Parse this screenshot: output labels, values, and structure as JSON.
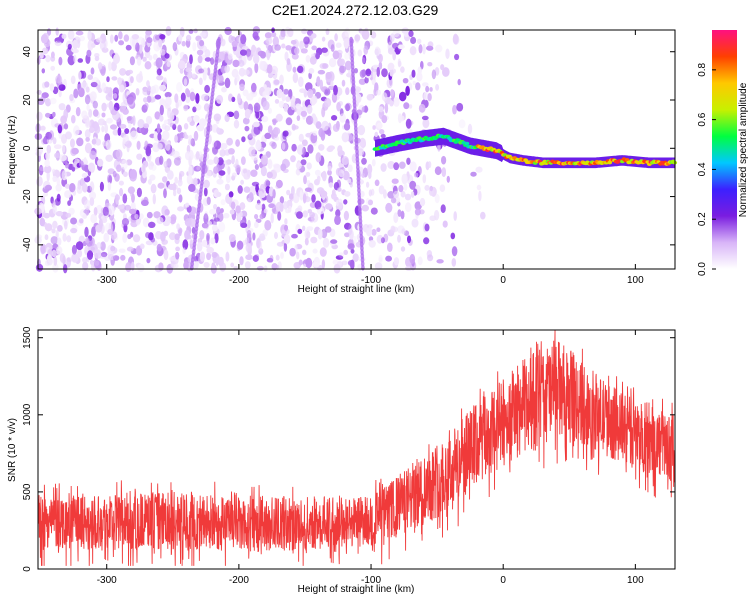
{
  "title": "C2E1.2024.272.12.03.G29",
  "chart_data": [
    {
      "type": "heatmap",
      "title": "",
      "xlabel": "Height of straight line (km)",
      "ylabel": "Frequency (Hz)",
      "xlim": [
        -352,
        130
      ],
      "ylim": [
        -50,
        49
      ],
      "x_ticks": [
        -300,
        -200,
        -100,
        0,
        100
      ],
      "y_ticks": [
        -40,
        -20,
        0,
        20,
        40
      ],
      "colorbar": {
        "label": "Normalized spectral amplitude",
        "range": [
          0,
          0.96
        ],
        "ticks": [
          0.0,
          0.2,
          0.4,
          0.6,
          0.8
        ],
        "colormap": [
          "#ffffff",
          "#d8b4f8",
          "#7a1de0",
          "#3c20ff",
          "#00c8ff",
          "#00ff40",
          "#c8f000",
          "#ffc800",
          "#ff4000",
          "#ff1080"
        ]
      },
      "noise_region": {
        "x_range": [
          -352,
          -40
        ],
        "description_color": "#6010e0"
      },
      "signal_track": {
        "x": [
          -97,
          -80,
          -60,
          -45,
          -35,
          -25,
          -15,
          -5,
          5,
          15,
          30,
          50,
          70,
          90,
          110,
          130
        ],
        "frequency": [
          0,
          2,
          4,
          5,
          3,
          1,
          0,
          -1,
          -4,
          -5,
          -6,
          -6,
          -6,
          -5,
          -6,
          -6
        ]
      }
    },
    {
      "type": "line",
      "title": "",
      "xlabel": "Height of straight line (km)",
      "ylabel": "SNR (10 * v/v)",
      "xlim": [
        -352,
        130
      ],
      "ylim": [
        0,
        1550
      ],
      "x_ticks": [
        -300,
        -200,
        -100,
        0,
        100
      ],
      "y_ticks": [
        0,
        500,
        1000,
        1500
      ],
      "series": [
        {
          "color": "#f03a3a",
          "envelope_x": [
            -352,
            -300,
            -250,
            -200,
            -150,
            -100,
            -80,
            -60,
            -40,
            -20,
            0,
            10,
            20,
            40,
            60,
            80,
            100,
            130
          ],
          "envelope_low": [
            130,
            130,
            120,
            110,
            120,
            150,
            200,
            280,
            380,
            520,
            650,
            720,
            750,
            820,
            800,
            720,
            640,
            560
          ],
          "envelope_high": [
            480,
            500,
            500,
            480,
            470,
            480,
            600,
            760,
            900,
            1080,
            1240,
            1320,
            1400,
            1500,
            1350,
            1200,
            1100,
            1000
          ]
        }
      ]
    }
  ]
}
